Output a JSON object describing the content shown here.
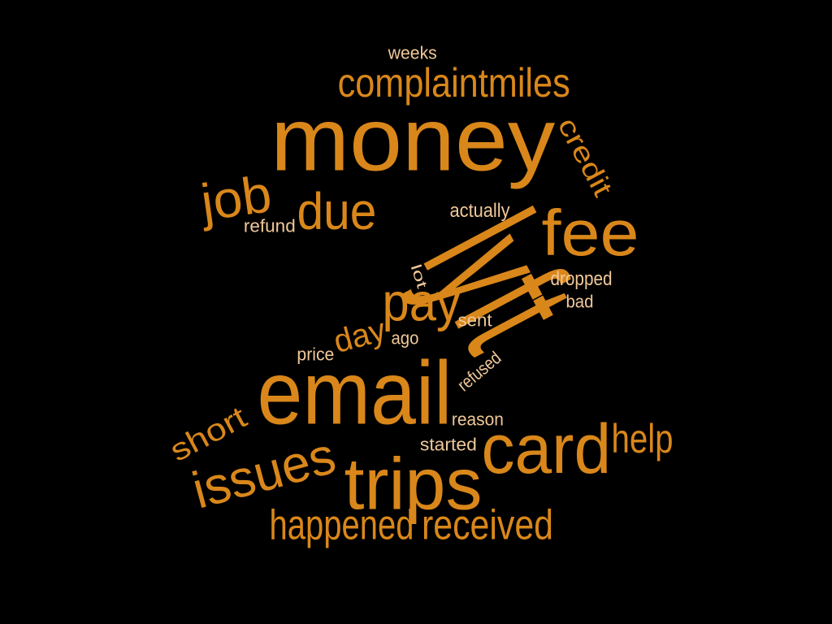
{
  "colors": {
    "background": "#000000",
    "primary": "#D9871A",
    "light": "#F0C89A"
  },
  "words": [
    {
      "text": "money",
      "tone": "primary"
    },
    {
      "text": "email",
      "tone": "primary"
    },
    {
      "text": "lyft",
      "tone": "primary"
    },
    {
      "text": "card",
      "tone": "primary"
    },
    {
      "text": "trips",
      "tone": "primary"
    },
    {
      "text": "fee",
      "tone": "primary"
    },
    {
      "text": "pay",
      "tone": "primary"
    },
    {
      "text": "issues",
      "tone": "primary"
    },
    {
      "text": "due",
      "tone": "primary"
    },
    {
      "text": "job",
      "tone": "primary"
    },
    {
      "text": "complaintmiles",
      "tone": "primary"
    },
    {
      "text": "received",
      "tone": "primary"
    },
    {
      "text": "happened",
      "tone": "primary"
    },
    {
      "text": "help",
      "tone": "primary"
    },
    {
      "text": "short",
      "tone": "primary"
    },
    {
      "text": "credit",
      "tone": "primary"
    },
    {
      "text": "day",
      "tone": "primary"
    },
    {
      "text": "actually",
      "tone": "light"
    },
    {
      "text": "dropped",
      "tone": "light"
    },
    {
      "text": "refund",
      "tone": "light"
    },
    {
      "text": "weeks",
      "tone": "light"
    },
    {
      "text": "bad",
      "tone": "light"
    },
    {
      "text": "sent",
      "tone": "light"
    },
    {
      "text": "ago",
      "tone": "light"
    },
    {
      "text": "price",
      "tone": "light"
    },
    {
      "text": "lot",
      "tone": "light"
    },
    {
      "text": "refused",
      "tone": "light"
    },
    {
      "text": "reason",
      "tone": "light"
    },
    {
      "text": "started",
      "tone": "light"
    }
  ]
}
